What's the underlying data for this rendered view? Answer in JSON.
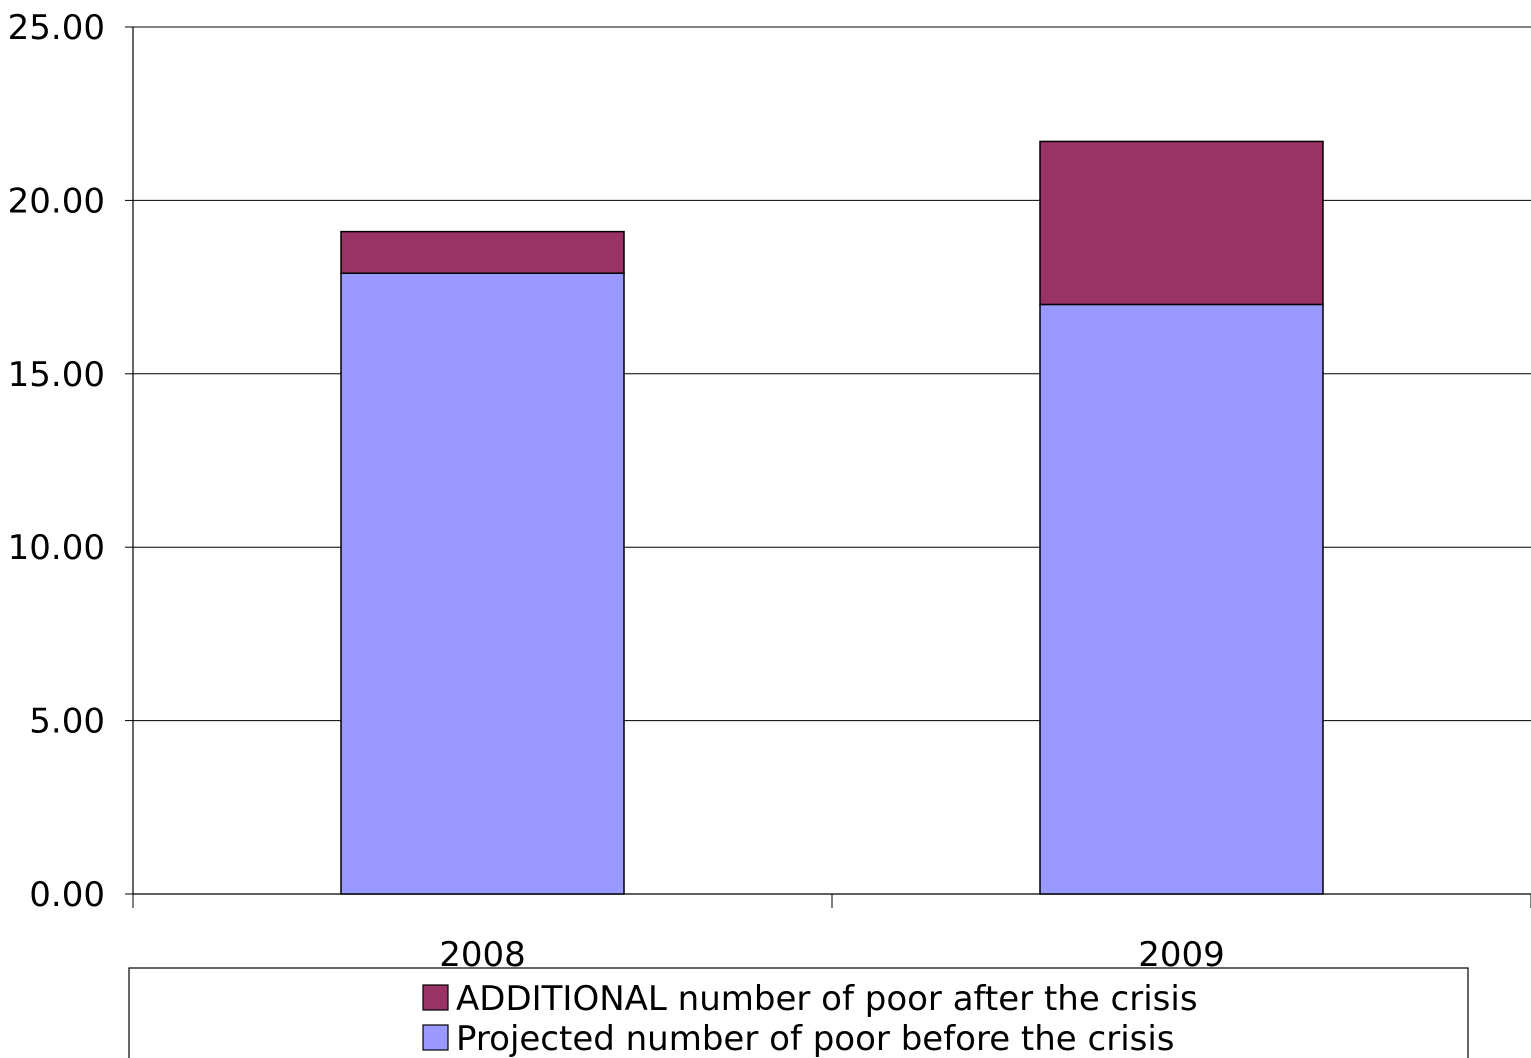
{
  "chart_data": {
    "type": "bar",
    "stacked": true,
    "categories": [
      "2008",
      "2009"
    ],
    "series": [
      {
        "name": "Projected number of poor before the crisis",
        "values": [
          17.9,
          17.0
        ],
        "color": "#9999ff"
      },
      {
        "name": "ADDITIONAL number of poor after the crisis",
        "values": [
          1.2,
          4.7
        ],
        "color": "#993366"
      }
    ],
    "yticks": [
      "0.00",
      "5.00",
      "10.00",
      "15.00",
      "20.00",
      "25.00"
    ],
    "ylim": [
      0,
      25
    ],
    "grid": true,
    "legend_position": "bottom",
    "legend_order": [
      1,
      0
    ]
  }
}
